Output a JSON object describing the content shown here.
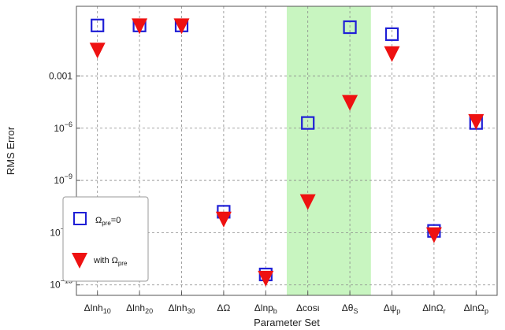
{
  "chart_data": {
    "type": "scatter",
    "xlabel": "Parameter Set",
    "ylabel": "RMS Error",
    "ylim_log10": [
      -15.6,
      1.0
    ],
    "y_scale": "log",
    "grid": true,
    "legend_placement": "lower-left",
    "categories": [
      {
        "base": "Δlnh",
        "sub": "10"
      },
      {
        "base": "Δlnh",
        "sub": "20"
      },
      {
        "base": "Δlnh",
        "sub": "30"
      },
      {
        "base": "ΔΩ",
        "sub": ""
      },
      {
        "base": "Δlnp",
        "sub": "b"
      },
      {
        "base": "Δcosι",
        "sub": ""
      },
      {
        "base": "Δθ",
        "sub": "S"
      },
      {
        "base": "Δψ",
        "sub": "p"
      },
      {
        "base": "ΔlnΩ",
        "sub": "r"
      },
      {
        "base": "ΔlnΩ",
        "sub": "p"
      }
    ],
    "yticks": [
      {
        "log10": -3,
        "label": "0.001",
        "sup": ""
      },
      {
        "log10": -6,
        "label": "10",
        "sup": "−6"
      },
      {
        "log10": -9,
        "label": "10",
        "sup": "−9"
      },
      {
        "log10": -12,
        "label": "10",
        "sup": "−12"
      },
      {
        "log10": -15,
        "label": "10",
        "sup": "−15"
      }
    ],
    "series": [
      {
        "legend_base": "Ω",
        "legend_sub": "pre",
        "legend_suffix": "=0",
        "marker": "square-open",
        "color": "#1f1fd6",
        "values_log10": [
          -0.1,
          -0.1,
          -0.1,
          -10.8,
          -14.4,
          -5.7,
          -0.2,
          -0.6,
          -11.9,
          -5.7
        ]
      },
      {
        "legend_prefix": "with ",
        "legend_base": "Ω",
        "legend_sub": "pre",
        "marker": "triangle-down-filled",
        "color": "#ee1111",
        "values_log10": [
          -1.5,
          -0.1,
          -0.1,
          -11.2,
          -14.6,
          -10.2,
          -4.5,
          -1.7,
          -12.1,
          -5.6
        ]
      }
    ],
    "highlight": {
      "from_index": 5,
      "to_index": 6,
      "color": "#c8f5c0"
    }
  }
}
